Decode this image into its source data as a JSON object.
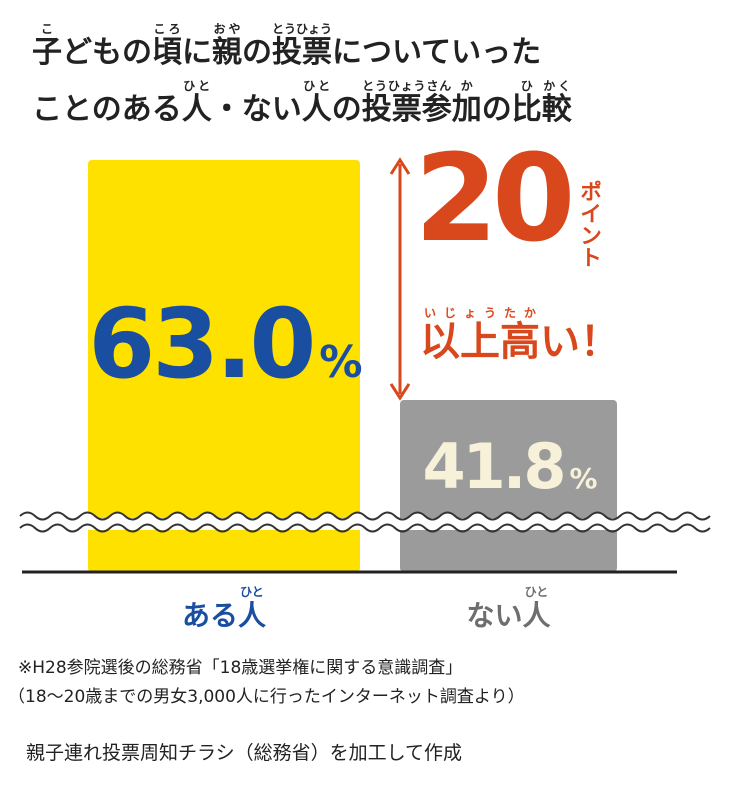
{
  "chart_data": {
    "type": "bar",
    "title_lines": [
      [
        {
          "text": "子",
          "ruby": "こ"
        },
        {
          "text": "どもの"
        },
        {
          "text": "頃",
          "ruby": "ころ"
        },
        {
          "text": "に"
        },
        {
          "text": "親",
          "ruby": "おや"
        },
        {
          "text": "の"
        },
        {
          "text": "投票",
          "ruby": "とうひょう"
        },
        {
          "text": "についていった"
        }
      ],
      [
        {
          "text": "ことのある"
        },
        {
          "text": "人",
          "ruby": "ひと"
        },
        {
          "text": "・ない"
        },
        {
          "text": "人",
          "ruby": "ひと"
        },
        {
          "text": "の"
        },
        {
          "text": "投票参",
          "ruby": "とうひょうさん"
        },
        {
          "text": "加",
          "ruby": "か"
        },
        {
          "text": "の"
        },
        {
          "text": "比",
          "ruby": "ひ"
        },
        {
          "text": "較",
          "ruby": "かく"
        }
      ]
    ],
    "categories": [
      "ある人",
      "ない人"
    ],
    "category_ruby": [
      "ひと",
      "ひと"
    ],
    "category_colors": [
      "#1a4ea0",
      "#6e6e6e"
    ],
    "values": [
      63.0,
      41.8
    ],
    "value_labels": [
      "63.0%",
      "41.8%"
    ],
    "colors": [
      "#ffe100",
      "#9b9b9b"
    ],
    "value_label_colors": [
      "#1a4ea0",
      "#f7f1d9"
    ],
    "ylim": [
      26.6,
      63.0
    ],
    "axis_break": true,
    "annotation": {
      "difference": 20,
      "unit": "ポイント",
      "text": [
        {
          "text": "以上",
          "ruby": "いじょう"
        },
        {
          "text": "高",
          "ruby": "たか"
        },
        {
          "text": "い！"
        }
      ],
      "color": "#d9481c"
    },
    "notes": [
      "※H28参院選後の総務省「18歳選挙権に関する意識調査」",
      "（18～20歳までの男女3,000人に行ったインターネット調査より）",
      "親子連れ投票周知チラシ（総務省）を加工して作成"
    ]
  }
}
